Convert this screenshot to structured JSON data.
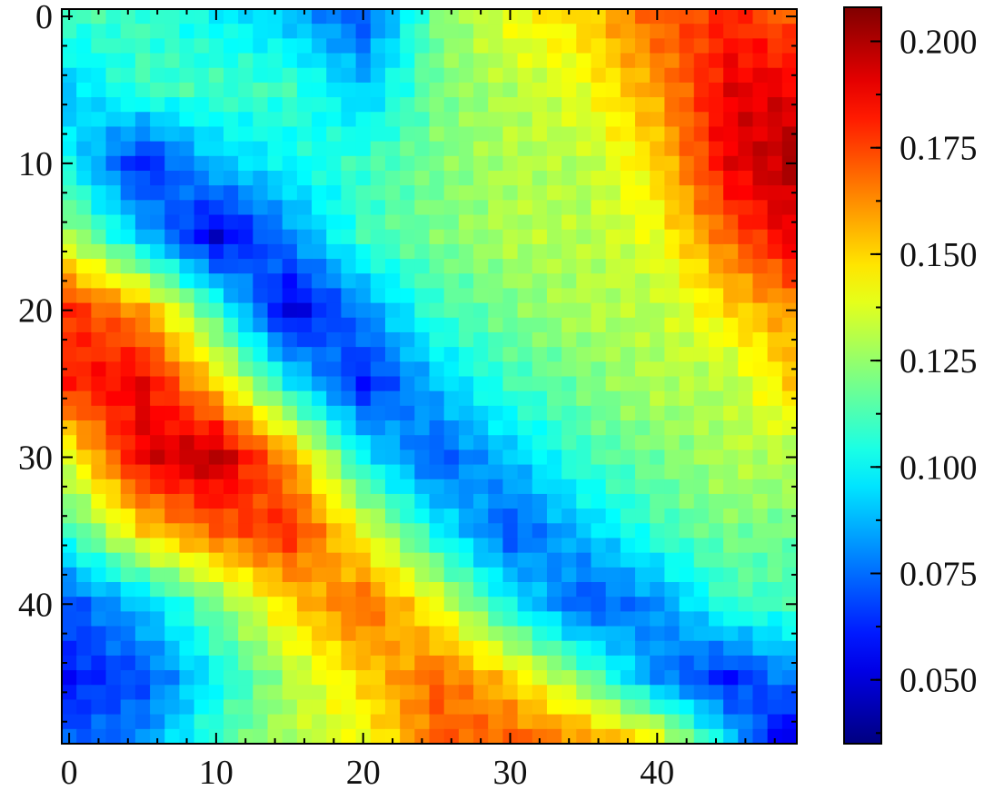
{
  "chart_data": {
    "type": "heatmap",
    "title": "",
    "xlabel": "",
    "ylabel": "",
    "rows": 50,
    "cols": 50,
    "xlim": [
      -0.5,
      49.5
    ],
    "ylim": [
      49.5,
      -0.5
    ],
    "x_ticks": [
      0,
      10,
      20,
      30,
      40
    ],
    "y_ticks": [
      0,
      10,
      20,
      30,
      40
    ],
    "x_tick_labels": [
      "0",
      "10",
      "20",
      "30",
      "40"
    ],
    "y_tick_labels": [
      "0",
      "10",
      "20",
      "30",
      "40"
    ],
    "y_axis_inverted": true,
    "grid": false,
    "colormap": "jet",
    "colorbar": {
      "vmin": 0.035,
      "vmax": 0.208,
      "ticks": [
        0.05,
        0.075,
        0.1,
        0.125,
        0.15,
        0.175,
        0.2
      ],
      "tick_labels": [
        "0.050",
        "0.075",
        "0.100",
        "0.125",
        "0.150",
        "0.175",
        "0.200"
      ],
      "placement": "right"
    },
    "control_points": {
      "note_rows": [
        0,
        5,
        10,
        15,
        20,
        25,
        30,
        35,
        40,
        45,
        49
      ],
      "note_cols": [
        0,
        5,
        10,
        15,
        20,
        25,
        30,
        35,
        40,
        45,
        49
      ],
      "values": [
        [
          0.11,
          0.11,
          0.1,
          0.09,
          0.07,
          0.12,
          0.14,
          0.15,
          0.17,
          0.18,
          0.17
        ],
        [
          0.09,
          0.11,
          0.11,
          0.11,
          0.09,
          0.12,
          0.13,
          0.14,
          0.16,
          0.19,
          0.19
        ],
        [
          0.1,
          0.06,
          0.09,
          0.1,
          0.11,
          0.12,
          0.13,
          0.13,
          0.15,
          0.19,
          0.2
        ],
        [
          0.13,
          0.09,
          0.05,
          0.08,
          0.11,
          0.12,
          0.13,
          0.13,
          0.14,
          0.17,
          0.19
        ],
        [
          0.18,
          0.16,
          0.11,
          0.05,
          0.08,
          0.11,
          0.12,
          0.13,
          0.13,
          0.15,
          0.16
        ],
        [
          0.18,
          0.19,
          0.15,
          0.1,
          0.06,
          0.09,
          0.11,
          0.12,
          0.13,
          0.13,
          0.15
        ],
        [
          0.14,
          0.19,
          0.2,
          0.16,
          0.1,
          0.07,
          0.09,
          0.11,
          0.12,
          0.13,
          0.13
        ],
        [
          0.11,
          0.15,
          0.17,
          0.18,
          0.14,
          0.1,
          0.07,
          0.09,
          0.11,
          0.12,
          0.12
        ],
        [
          0.07,
          0.09,
          0.12,
          0.15,
          0.17,
          0.14,
          0.1,
          0.07,
          0.08,
          0.11,
          0.11
        ],
        [
          0.06,
          0.07,
          0.1,
          0.13,
          0.15,
          0.17,
          0.15,
          0.12,
          0.08,
          0.06,
          0.08
        ],
        [
          0.07,
          0.08,
          0.11,
          0.13,
          0.14,
          0.17,
          0.17,
          0.16,
          0.14,
          0.09,
          0.05
        ]
      ]
    }
  }
}
